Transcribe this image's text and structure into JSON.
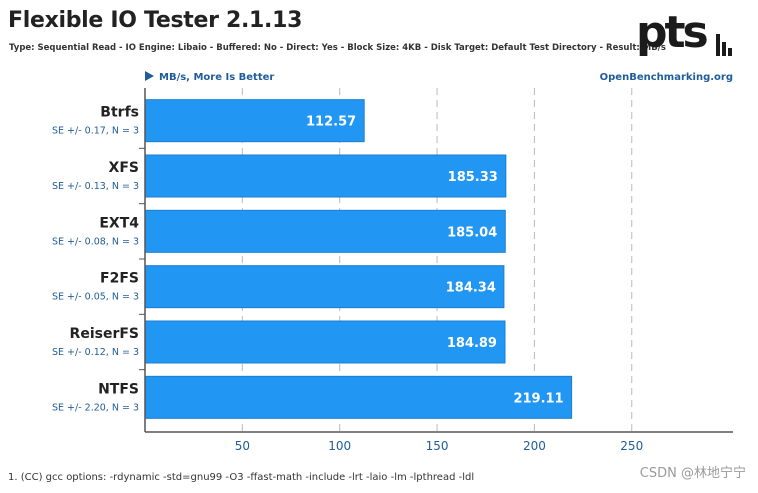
{
  "header": {
    "title": "Flexible IO Tester 2.1.13",
    "subtitle": "Type: Sequential Read - IO Engine: Libaio - Buffered: No - Direct: Yes - Block Size: 4KB - Disk Target: Default Test Directory - Result: MB/s",
    "logo_text": "pts"
  },
  "footer": {
    "footnote": "1. (CC) gcc options: -rdynamic -std=gnu99 -O3 -ffast-math -include -lrt -laio -lm -lpthread -ldl",
    "watermark": "CSDN @林地宁宁"
  },
  "chart_data": {
    "type": "bar",
    "orientation": "horizontal",
    "units_label": "MB/s, More Is Better",
    "source_label": "OpenBenchmarking.org",
    "categories": [
      "Btrfs",
      "XFS",
      "EXT4",
      "F2FS",
      "ReiserFS",
      "NTFS"
    ],
    "values": [
      112.57,
      185.33,
      185.04,
      184.34,
      184.89,
      219.11
    ],
    "value_labels": [
      "112.57",
      "185.33",
      "185.04",
      "184.34",
      "184.89",
      "219.11"
    ],
    "errors": [
      "SE +/- 0.17, N = 3",
      "SE +/- 0.13, N = 3",
      "SE +/- 0.08, N = 3",
      "SE +/- 0.05, N = 3",
      "SE +/- 0.12, N = 3",
      "SE +/- 2.20, N = 3"
    ],
    "xticks": [
      50,
      100,
      150,
      200,
      250
    ],
    "xlim": [
      0,
      302
    ],
    "grid": true,
    "bar_color": "#2196f3",
    "accent_color": "#1f5d99"
  }
}
